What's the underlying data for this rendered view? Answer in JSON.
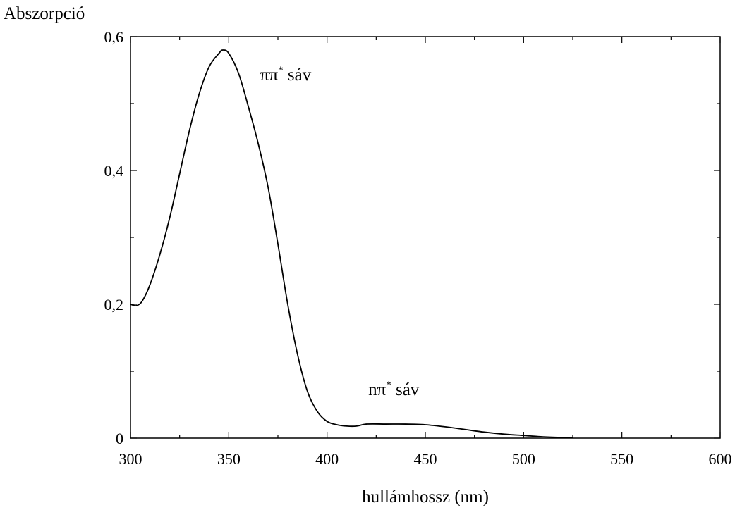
{
  "chart_data": {
    "type": "line",
    "ylabel": "Abszorpció",
    "xlabel": "hullámhossz (nm)",
    "xlim": [
      300,
      600
    ],
    "ylim": [
      0,
      0.6
    ],
    "x_ticks": [
      300,
      350,
      400,
      450,
      500,
      550,
      600
    ],
    "x_tick_labels": [
      "300",
      "350",
      "400",
      "450",
      "500",
      "550",
      "600"
    ],
    "y_ticks": [
      0,
      0.2,
      0.4,
      0.6
    ],
    "y_tick_labels": [
      "0",
      "0,2",
      "0,4",
      "0,6"
    ],
    "grid": false,
    "series": [
      {
        "x": [
          300,
          303,
          306,
          310,
          315,
          320,
          325,
          330,
          335,
          340,
          345,
          347,
          350,
          355,
          360,
          365,
          370,
          375,
          380,
          385,
          390,
          395,
          400,
          405,
          410,
          415,
          420,
          430,
          440,
          450,
          460,
          470,
          480,
          490,
          500,
          510,
          520,
          525
        ],
        "y": [
          0.2,
          0.198,
          0.205,
          0.23,
          0.275,
          0.33,
          0.395,
          0.46,
          0.515,
          0.555,
          0.575,
          0.58,
          0.575,
          0.545,
          0.495,
          0.44,
          0.375,
          0.29,
          0.2,
          0.125,
          0.07,
          0.04,
          0.025,
          0.02,
          0.018,
          0.018,
          0.021,
          0.021,
          0.021,
          0.02,
          0.017,
          0.013,
          0.009,
          0.006,
          0.004,
          0.002,
          0.001,
          0.001
        ]
      }
    ],
    "annotations": [
      {
        "main": "ππ",
        "sup": "*",
        "rest": " sáv",
        "x": 366,
        "y": 0.535
      },
      {
        "main": "nπ",
        "sup": "*",
        "rest": " sáv",
        "x": 421,
        "y": 0.064
      }
    ]
  }
}
